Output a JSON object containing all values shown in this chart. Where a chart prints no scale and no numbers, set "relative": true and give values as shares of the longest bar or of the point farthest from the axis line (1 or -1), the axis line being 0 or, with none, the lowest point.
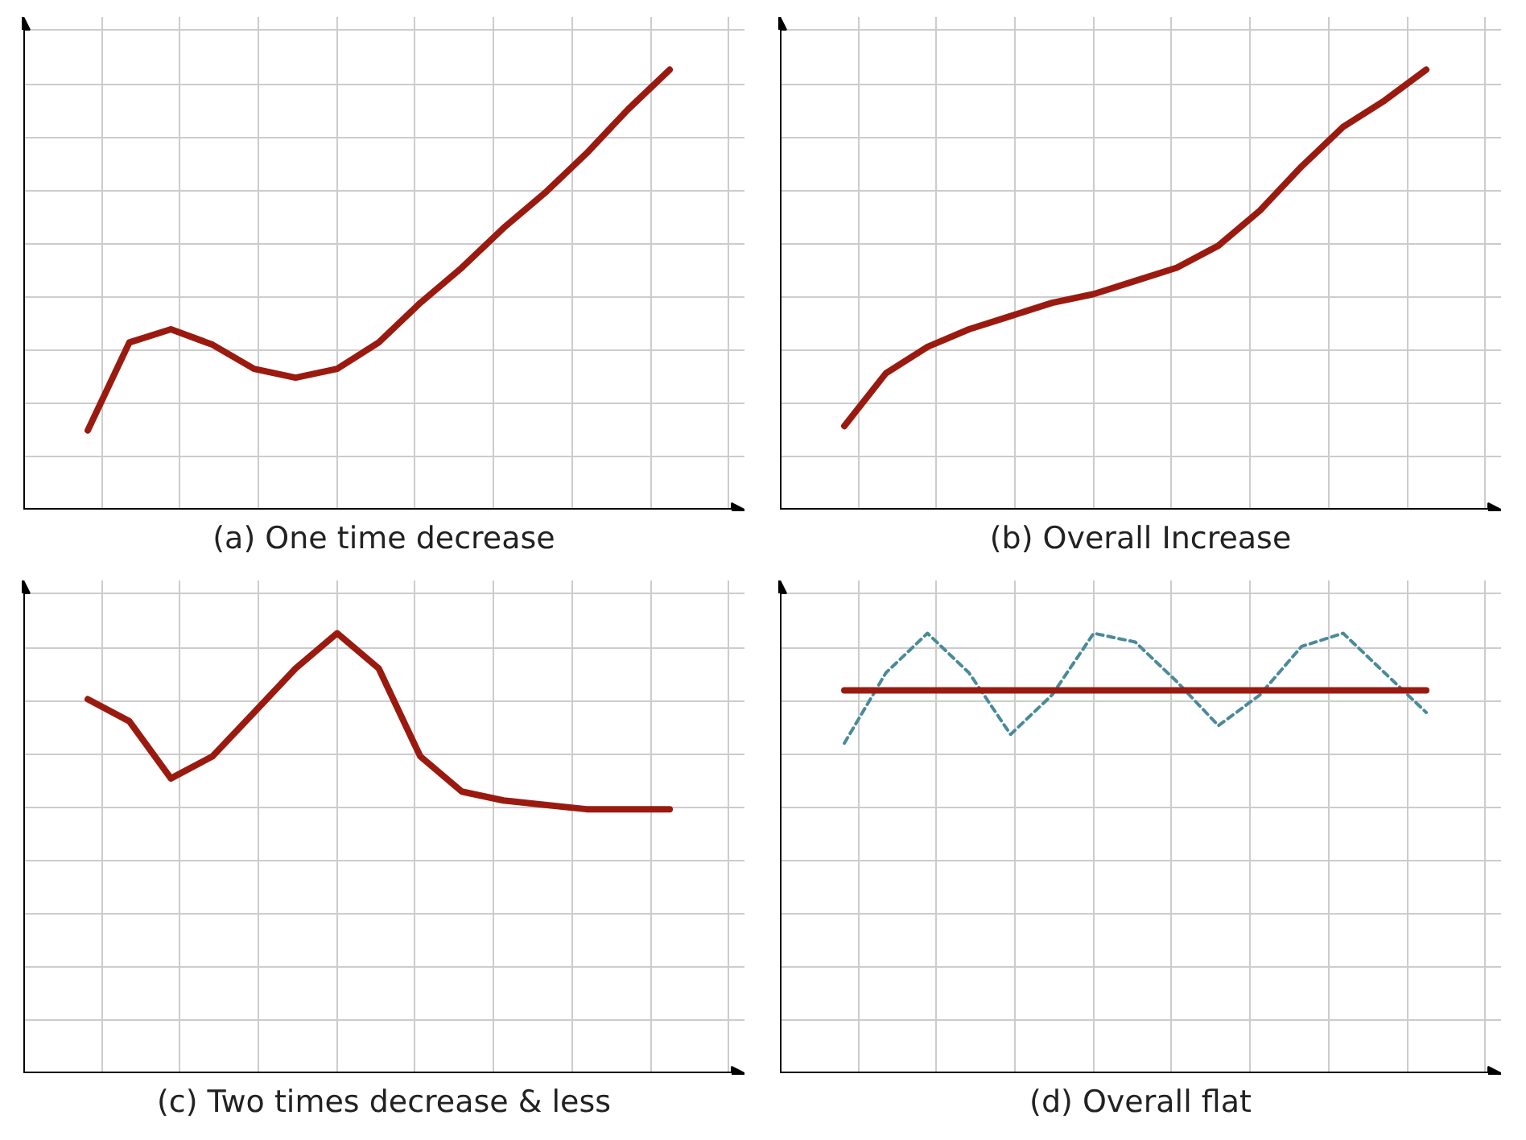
{
  "chart_data": [
    {
      "type": "line",
      "title": "(a) One time decrease",
      "relative": true,
      "grid": true,
      "categories": [
        null,
        null,
        null,
        null,
        null,
        null,
        null,
        null,
        null,
        null,
        null,
        null,
        null,
        null,
        null
      ],
      "series": [
        {
          "color": "#9b1a10",
          "values": [
            0.18,
            0.38,
            0.41,
            0.375,
            0.32,
            0.3,
            0.32,
            0.38,
            0.47,
            0.55,
            0.64,
            0.72,
            0.81,
            0.91,
            1.0
          ]
        }
      ]
    },
    {
      "type": "line",
      "title": "(b) Overall Increase",
      "relative": true,
      "grid": true,
      "categories": [
        null,
        null,
        null,
        null,
        null,
        null,
        null,
        null,
        null,
        null,
        null,
        null,
        null,
        null,
        null
      ],
      "series": [
        {
          "color": "#9b1a10",
          "values": [
            0.19,
            0.31,
            0.37,
            0.41,
            0.44,
            0.47,
            0.49,
            0.52,
            0.55,
            0.6,
            0.68,
            0.78,
            0.87,
            0.93,
            1.0
          ]
        }
      ]
    },
    {
      "type": "line",
      "title": "(c) Two times decrease & less",
      "relative": true,
      "grid": true,
      "categories": [
        null,
        null,
        null,
        null,
        null,
        null,
        null,
        null,
        null,
        null,
        null,
        null,
        null,
        null,
        null
      ],
      "series": [
        {
          "color": "#9b1a10",
          "values": [
            0.85,
            0.8,
            0.67,
            0.72,
            0.82,
            0.92,
            1.0,
            0.92,
            0.72,
            0.64,
            0.62,
            0.61,
            0.6,
            0.6,
            0.6
          ]
        }
      ]
    },
    {
      "type": "line",
      "title": "(d) Overall flat",
      "relative": true,
      "grid": true,
      "categories": [
        null,
        null,
        null,
        null,
        null,
        null,
        null,
        null,
        null,
        null,
        null,
        null,
        null,
        null,
        null
      ],
      "series": [
        {
          "color": "#4a8a9a",
          "line_style": "dashed",
          "values": [
            0.75,
            0.91,
            1.0,
            0.91,
            0.77,
            0.86,
            1.0,
            0.98,
            0.89,
            0.79,
            0.86,
            0.97,
            1.0,
            0.91,
            0.82
          ]
        },
        {
          "color": "#9b1a10",
          "values": [
            0.87,
            0.87,
            0.87,
            0.87,
            0.87,
            0.87,
            0.87,
            0.87,
            0.87,
            0.87,
            0.87,
            0.87,
            0.87,
            0.87,
            0.87
          ]
        }
      ]
    }
  ]
}
